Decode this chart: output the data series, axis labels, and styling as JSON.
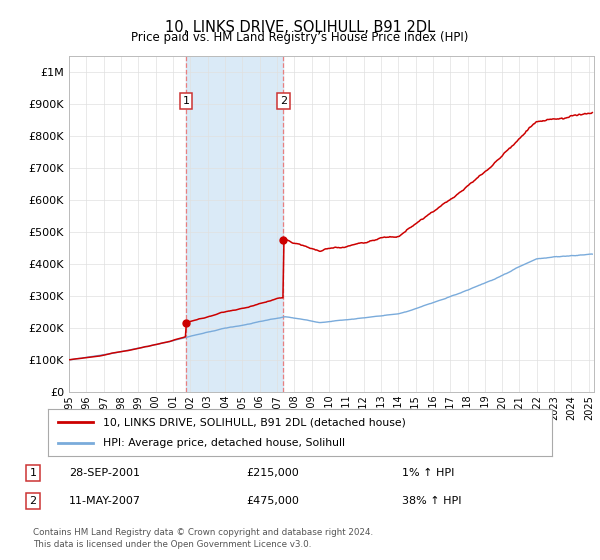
{
  "title": "10, LINKS DRIVE, SOLIHULL, B91 2DL",
  "subtitle": "Price paid vs. HM Land Registry’s House Price Index (HPI)",
  "ylim": [
    0,
    1050000
  ],
  "yticks": [
    0,
    100000,
    200000,
    300000,
    400000,
    500000,
    600000,
    700000,
    800000,
    900000,
    1000000
  ],
  "ytick_labels": [
    "£0",
    "£100K",
    "£200K",
    "£300K",
    "£400K",
    "£500K",
    "£600K",
    "£700K",
    "£800K",
    "£900K",
    "£1M"
  ],
  "line1_color": "#cc0000",
  "line2_color": "#7aabdb",
  "shade_color": "#daeaf7",
  "marker_color": "#cc0000",
  "vline_color": "#e88080",
  "transaction1_date": 2001.75,
  "transaction1_price": 215000,
  "transaction2_date": 2007.37,
  "transaction2_price": 475000,
  "legend_label1": "10, LINKS DRIVE, SOLIHULL, B91 2DL (detached house)",
  "legend_label2": "HPI: Average price, detached house, Solihull",
  "note1_date": "28-SEP-2001",
  "note1_price": "£215,000",
  "note1_hpi": "1% ↑ HPI",
  "note2_date": "11-MAY-2007",
  "note2_price": "£475,000",
  "note2_hpi": "38% ↑ HPI",
  "footer": "Contains HM Land Registry data © Crown copyright and database right 2024.\nThis data is licensed under the Open Government Licence v3.0.",
  "background_color": "#ffffff",
  "grid_color": "#e0e0e0",
  "xlim_start": 1995,
  "xlim_end": 2025.3
}
